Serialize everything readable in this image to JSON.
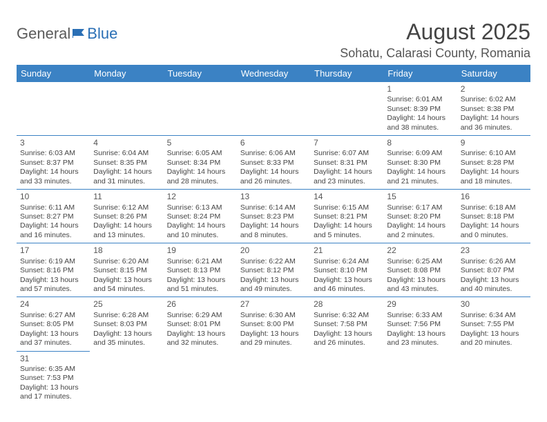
{
  "logo": {
    "part1": "General",
    "part2": "Blue"
  },
  "title": "August 2025",
  "location": "Sohatu, Calarasi County, Romania",
  "header_bg": "#3b82c4",
  "cell_border": "#3b82c4",
  "dow": [
    "Sunday",
    "Monday",
    "Tuesday",
    "Wednesday",
    "Thursday",
    "Friday",
    "Saturday"
  ],
  "weeks": [
    [
      null,
      null,
      null,
      null,
      null,
      {
        "n": "1",
        "sr": "6:01 AM",
        "ss": "8:39 PM",
        "dl": "14 hours and 38 minutes."
      },
      {
        "n": "2",
        "sr": "6:02 AM",
        "ss": "8:38 PM",
        "dl": "14 hours and 36 minutes."
      }
    ],
    [
      {
        "n": "3",
        "sr": "6:03 AM",
        "ss": "8:37 PM",
        "dl": "14 hours and 33 minutes."
      },
      {
        "n": "4",
        "sr": "6:04 AM",
        "ss": "8:35 PM",
        "dl": "14 hours and 31 minutes."
      },
      {
        "n": "5",
        "sr": "6:05 AM",
        "ss": "8:34 PM",
        "dl": "14 hours and 28 minutes."
      },
      {
        "n": "6",
        "sr": "6:06 AM",
        "ss": "8:33 PM",
        "dl": "14 hours and 26 minutes."
      },
      {
        "n": "7",
        "sr": "6:07 AM",
        "ss": "8:31 PM",
        "dl": "14 hours and 23 minutes."
      },
      {
        "n": "8",
        "sr": "6:09 AM",
        "ss": "8:30 PM",
        "dl": "14 hours and 21 minutes."
      },
      {
        "n": "9",
        "sr": "6:10 AM",
        "ss": "8:28 PM",
        "dl": "14 hours and 18 minutes."
      }
    ],
    [
      {
        "n": "10",
        "sr": "6:11 AM",
        "ss": "8:27 PM",
        "dl": "14 hours and 16 minutes."
      },
      {
        "n": "11",
        "sr": "6:12 AM",
        "ss": "8:26 PM",
        "dl": "14 hours and 13 minutes."
      },
      {
        "n": "12",
        "sr": "6:13 AM",
        "ss": "8:24 PM",
        "dl": "14 hours and 10 minutes."
      },
      {
        "n": "13",
        "sr": "6:14 AM",
        "ss": "8:23 PM",
        "dl": "14 hours and 8 minutes."
      },
      {
        "n": "14",
        "sr": "6:15 AM",
        "ss": "8:21 PM",
        "dl": "14 hours and 5 minutes."
      },
      {
        "n": "15",
        "sr": "6:17 AM",
        "ss": "8:20 PM",
        "dl": "14 hours and 2 minutes."
      },
      {
        "n": "16",
        "sr": "6:18 AM",
        "ss": "8:18 PM",
        "dl": "14 hours and 0 minutes."
      }
    ],
    [
      {
        "n": "17",
        "sr": "6:19 AM",
        "ss": "8:16 PM",
        "dl": "13 hours and 57 minutes."
      },
      {
        "n": "18",
        "sr": "6:20 AM",
        "ss": "8:15 PM",
        "dl": "13 hours and 54 minutes."
      },
      {
        "n": "19",
        "sr": "6:21 AM",
        "ss": "8:13 PM",
        "dl": "13 hours and 51 minutes."
      },
      {
        "n": "20",
        "sr": "6:22 AM",
        "ss": "8:12 PM",
        "dl": "13 hours and 49 minutes."
      },
      {
        "n": "21",
        "sr": "6:24 AM",
        "ss": "8:10 PM",
        "dl": "13 hours and 46 minutes."
      },
      {
        "n": "22",
        "sr": "6:25 AM",
        "ss": "8:08 PM",
        "dl": "13 hours and 43 minutes."
      },
      {
        "n": "23",
        "sr": "6:26 AM",
        "ss": "8:07 PM",
        "dl": "13 hours and 40 minutes."
      }
    ],
    [
      {
        "n": "24",
        "sr": "6:27 AM",
        "ss": "8:05 PM",
        "dl": "13 hours and 37 minutes."
      },
      {
        "n": "25",
        "sr": "6:28 AM",
        "ss": "8:03 PM",
        "dl": "13 hours and 35 minutes."
      },
      {
        "n": "26",
        "sr": "6:29 AM",
        "ss": "8:01 PM",
        "dl": "13 hours and 32 minutes."
      },
      {
        "n": "27",
        "sr": "6:30 AM",
        "ss": "8:00 PM",
        "dl": "13 hours and 29 minutes."
      },
      {
        "n": "28",
        "sr": "6:32 AM",
        "ss": "7:58 PM",
        "dl": "13 hours and 26 minutes."
      },
      {
        "n": "29",
        "sr": "6:33 AM",
        "ss": "7:56 PM",
        "dl": "13 hours and 23 minutes."
      },
      {
        "n": "30",
        "sr": "6:34 AM",
        "ss": "7:55 PM",
        "dl": "13 hours and 20 minutes."
      }
    ],
    [
      {
        "n": "31",
        "sr": "6:35 AM",
        "ss": "7:53 PM",
        "dl": "13 hours and 17 minutes."
      },
      null,
      null,
      null,
      null,
      null,
      null
    ]
  ],
  "labels": {
    "sunrise": "Sunrise: ",
    "sunset": "Sunset: ",
    "daylight": "Daylight: "
  }
}
